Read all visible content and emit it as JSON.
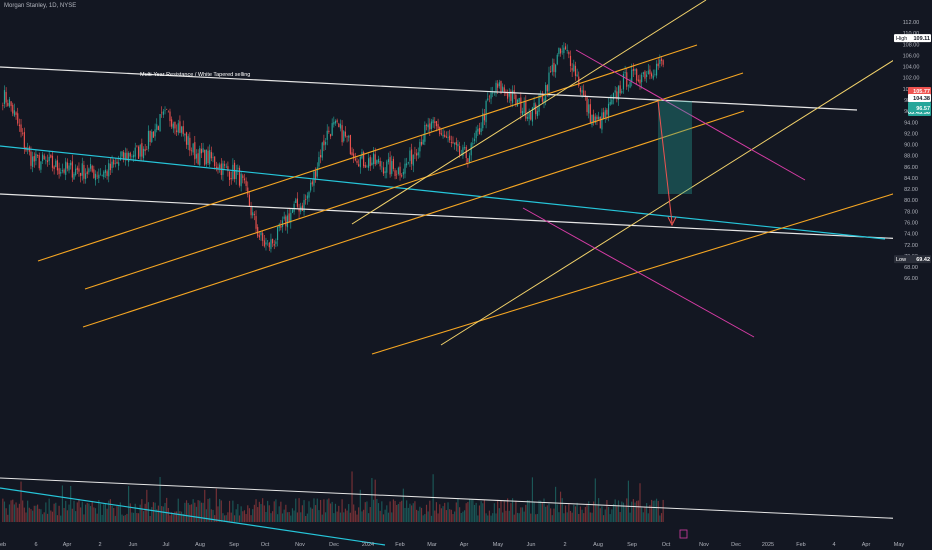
{
  "header": {
    "symbol": "Morgan Stanley, 1D, NYSE"
  },
  "colors": {
    "background": "#131722",
    "up": "#26a69a",
    "down": "#ef5350",
    "white_line": "#e6e6e6",
    "cyan_line": "#26c6da",
    "orange_line": "#f5a623",
    "yellow_line": "#f3d36b",
    "magenta_line": "#d63ca5",
    "price_label": "#2a2e39",
    "high_label": "#ffffff",
    "last_price": "#26a69a",
    "red_label": "#ef5350"
  },
  "chart_data": {
    "type": "candlestick",
    "title": "",
    "annotations": [
      {
        "text": "Multi-Year Resistance / White Tapered selling"
      }
    ],
    "y_axis": {
      "ticks": [
        112.0,
        110.0,
        108.0,
        106.0,
        104.0,
        102.0,
        100.0,
        98.0,
        96.0,
        94.0,
        92.0,
        90.0,
        88.0,
        86.0,
        84.0,
        82.0,
        80.0,
        78.0,
        76.0,
        74.0,
        72.0,
        70.0,
        68.0,
        66.0
      ],
      "ylim": [
        65.5,
        113.5
      ],
      "labels": [
        {
          "text": "High",
          "value": "109.11",
          "price": 109.11,
          "style": "high"
        },
        {
          "text": "",
          "value": "105.77",
          "price": 105.77,
          "style": "red"
        },
        {
          "text": "",
          "value": "104.38",
          "price": 104.38,
          "style": "white"
        },
        {
          "text": "",
          "value": "104.29",
          "price": 104.29,
          "style": "green"
        },
        {
          "text": "",
          "value": "03:45:36",
          "price": 103.7,
          "style": "green-sub"
        },
        {
          "text": "",
          "value": "96.57",
          "price": 96.57,
          "style": "teal"
        },
        {
          "text": "Low",
          "value": "69.42",
          "price": 69.42,
          "style": "low"
        }
      ]
    },
    "x_axis": {
      "ticks": [
        "eb",
        "6",
        "Apr",
        "2",
        "Jun",
        "Jul",
        "Aug",
        "Sep",
        "Oct",
        "Nov",
        "Dec",
        "2024",
        "Feb",
        "Mar",
        "Apr",
        "May",
        "Jun",
        "2",
        "Aug",
        "Sep",
        "Oct",
        "Nov",
        "Dec",
        "2025",
        "Feb",
        "4",
        "Apr",
        "May"
      ]
    },
    "price_series_approx": [
      {
        "x": "Feb 2023",
        "close": 98.5
      },
      {
        "x": "Mar 2023",
        "close": 87.0
      },
      {
        "x": "Apr 2023",
        "close": 85.5
      },
      {
        "x": "May 2023",
        "close": 85.0
      },
      {
        "x": "Jun 2023",
        "close": 88.5
      },
      {
        "x": "Jul 2023",
        "close": 95.0
      },
      {
        "x": "Aug 2023",
        "close": 88.0
      },
      {
        "x": "Sep 2023",
        "close": 85.0
      },
      {
        "x": "Oct 2023",
        "close": 72.0
      },
      {
        "x": "Nov 2023",
        "close": 79.0
      },
      {
        "x": "Dec 2023",
        "close": 93.0
      },
      {
        "x": "Jan 2024",
        "close": 87.0
      },
      {
        "x": "Feb 2024",
        "close": 85.5
      },
      {
        "x": "Mar 2024",
        "close": 93.0
      },
      {
        "x": "Apr 2024",
        "close": 88.0
      },
      {
        "x": "May 2024",
        "close": 100.0
      },
      {
        "x": "Jun 2024",
        "close": 96.0
      },
      {
        "x": "Jul 2024",
        "close": 106.5
      },
      {
        "x": "Aug 2024",
        "close": 94.0
      },
      {
        "x": "Sep 2024",
        "close": 102.0
      },
      {
        "x": "Oct 2024",
        "close": 104.3
      }
    ],
    "volume_present": true,
    "grid": false,
    "legend": "none"
  }
}
